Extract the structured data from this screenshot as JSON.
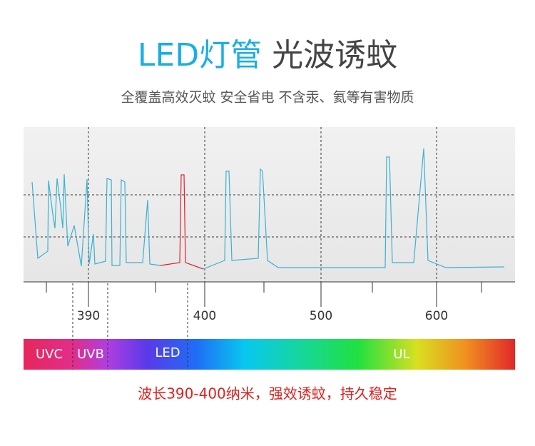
{
  "header": {
    "title_highlight": "LED灯管",
    "title_rest": "光波诱蚊",
    "subtitle": "全覆盖高效灭蚊 安全省电 不含汞、氦等有害物质"
  },
  "axis": {
    "ticks": [
      "390",
      "400",
      "500",
      "600"
    ]
  },
  "bands": [
    "UVC",
    "UVB",
    "LED",
    "UL"
  ],
  "footer": "波长390-400纳米，强效诱蚊，持久稳定"
}
